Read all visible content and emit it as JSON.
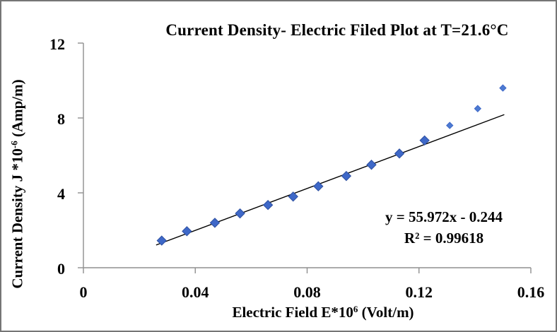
{
  "chart": {
    "background": "#ffffff",
    "border_color": "#757575"
  },
  "chart_data": {
    "type": "scatter",
    "title": "Current Density- Electric Filed Plot at T=21.6°C",
    "xlabel": "Electric Field E*10^6 (Volt/m)",
    "ylabel": "Current Density J *10^-6 (Amp/m)",
    "xlabel_parts": {
      "base": "Electric Field E*10",
      "sup": "6",
      "rest": " (Volt/m)"
    },
    "ylabel_parts": {
      "base": "Current Density J *10",
      "sup": "-6",
      "rest": " (Amp/m)"
    },
    "xlim": [
      0,
      0.16
    ],
    "ylim": [
      0,
      12
    ],
    "x_ticks": [
      "0",
      "0.04",
      "0.08",
      "0.12",
      "0.16"
    ],
    "y_ticks": [
      "0",
      "4",
      "8",
      "12"
    ],
    "grid": false,
    "legend": "none",
    "axis_color": "#8f8f8f",
    "series": [
      {
        "name": "measured-points-main",
        "marker": "diamond",
        "marker_size_px": 13,
        "fill": "#3e68c8",
        "stroke": "#2e50a0",
        "points": [
          [
            0.028,
            1.45
          ],
          [
            0.037,
            1.95
          ],
          [
            0.047,
            2.4
          ],
          [
            0.056,
            2.9
          ],
          [
            0.066,
            3.35
          ],
          [
            0.075,
            3.8
          ],
          [
            0.084,
            4.35
          ],
          [
            0.094,
            4.9
          ],
          [
            0.103,
            5.5
          ],
          [
            0.113,
            6.1
          ],
          [
            0.122,
            6.8
          ]
        ]
      },
      {
        "name": "measured-points-upper",
        "marker": "diamond",
        "marker_size_px": 9,
        "fill": "#4d7bd2",
        "stroke": "#3e68c8",
        "points": [
          [
            0.131,
            7.6
          ],
          [
            0.141,
            8.5
          ],
          [
            0.15,
            9.6
          ]
        ]
      }
    ],
    "trendline": {
      "type": "linear",
      "slope": 55.972,
      "intercept": -0.244,
      "x_start": 0.026,
      "x_end": 0.1505,
      "color": "#000000",
      "equation_label": "y = 55.972x - 0.244",
      "r2_label": "R² = 0.99618"
    }
  }
}
